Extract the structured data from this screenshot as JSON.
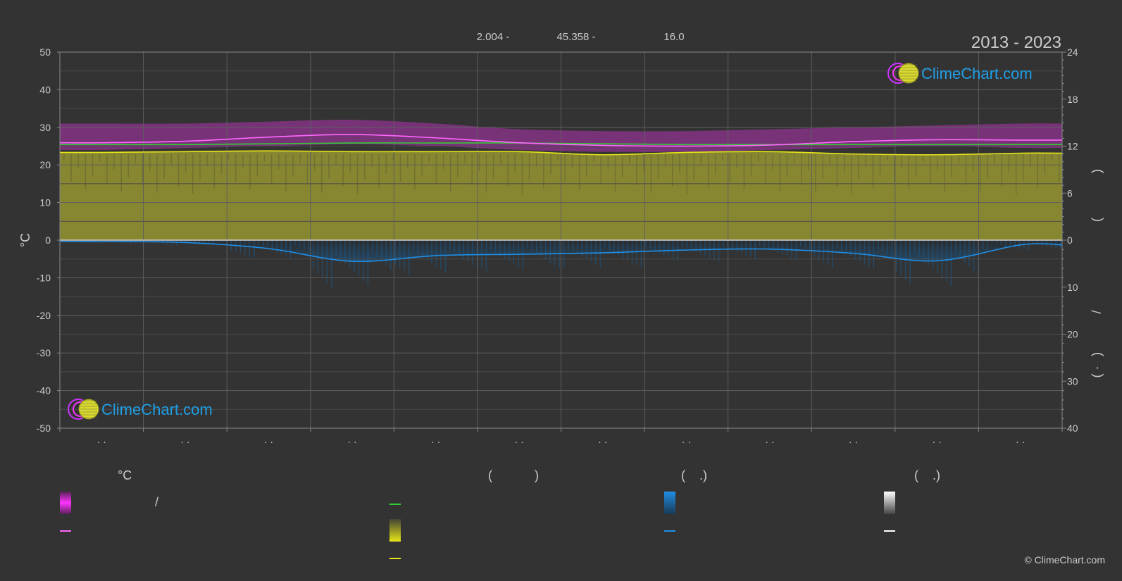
{
  "header": {
    "coords": [
      "2.004 -",
      "45.358 -",
      "16.0"
    ],
    "period": "2013 - 2023"
  },
  "logo_text": "ClimeChart.com",
  "copyright": "© ClimeChart.com",
  "colors": {
    "background": "#333333",
    "temp_band": "#cc33cc",
    "temp_line": "#ff66ff",
    "daylight_line": "#33cc33",
    "sunshine_fill": "#8c8c33",
    "sunshine_line": "#e6e619",
    "rain_line": "#1f8fe6",
    "rain_bars": "#1a5a8c",
    "snow_line": "#ffffff",
    "logo_blue": "#1f9fe6"
  },
  "chart_data": {
    "type": "area",
    "left_axis": {
      "label": "°C",
      "ticks": [
        50,
        40,
        30,
        20,
        10,
        0,
        -10,
        -20,
        -30,
        -40,
        -50
      ],
      "range": [
        -50,
        50
      ]
    },
    "right_axis_top": {
      "ticks": [
        24,
        18,
        12,
        6,
        0
      ],
      "range": [
        0,
        24
      ]
    },
    "right_axis_bottom": {
      "ticks": [
        0,
        10,
        20,
        30,
        40
      ],
      "range": [
        0,
        40
      ]
    },
    "right_axis_label_fragments": [
      ")",
      "(",
      "/",
      ")",
      "( ·"
    ],
    "x_tick_labels": [
      "· ·",
      "· ·",
      "· ·",
      "· ·",
      "· ·",
      "· ·",
      "· ·",
      "· ·",
      "· ·",
      "· ·",
      "· ·",
      "· ·"
    ],
    "months": 12,
    "series": [
      {
        "key": "temp_mean",
        "values": [
          25.9,
          26.3,
          27.4,
          28.1,
          27.2,
          25.9,
          25.2,
          25.0,
          25.3,
          26.2,
          26.7,
          26.6
        ]
      },
      {
        "key": "temp_band_top",
        "values": [
          31,
          31,
          31.5,
          32,
          31,
          29.5,
          29,
          29,
          29.5,
          30,
          30.5,
          31
        ]
      },
      {
        "key": "temp_band_bottom",
        "values": [
          24,
          24.5,
          25,
          25.5,
          25,
          24,
          23.5,
          23.5,
          24,
          24.5,
          25,
          24.5
        ]
      },
      {
        "key": "daylight_hours",
        "values": [
          12.2,
          12.2,
          12.3,
          12.4,
          12.4,
          12.4,
          12.3,
          12.2,
          12.2,
          12.2,
          12.2,
          12.2
        ]
      },
      {
        "key": "sunshine_hours",
        "values": [
          11.2,
          11.3,
          11.4,
          11.3,
          11.3,
          11.3,
          10.9,
          11.2,
          11.3,
          11.0,
          10.9,
          11.1
        ]
      },
      {
        "key": "rain_mm",
        "values": [
          0.3,
          0.5,
          1.8,
          4.5,
          3.3,
          3.0,
          2.7,
          2.1,
          1.9,
          2.8,
          4.4,
          1.0
        ]
      }
    ],
    "legend": {
      "headers": [
        "°C",
        "(            )",
        "(    .)",
        "(    .)"
      ],
      "slash": "/"
    }
  }
}
